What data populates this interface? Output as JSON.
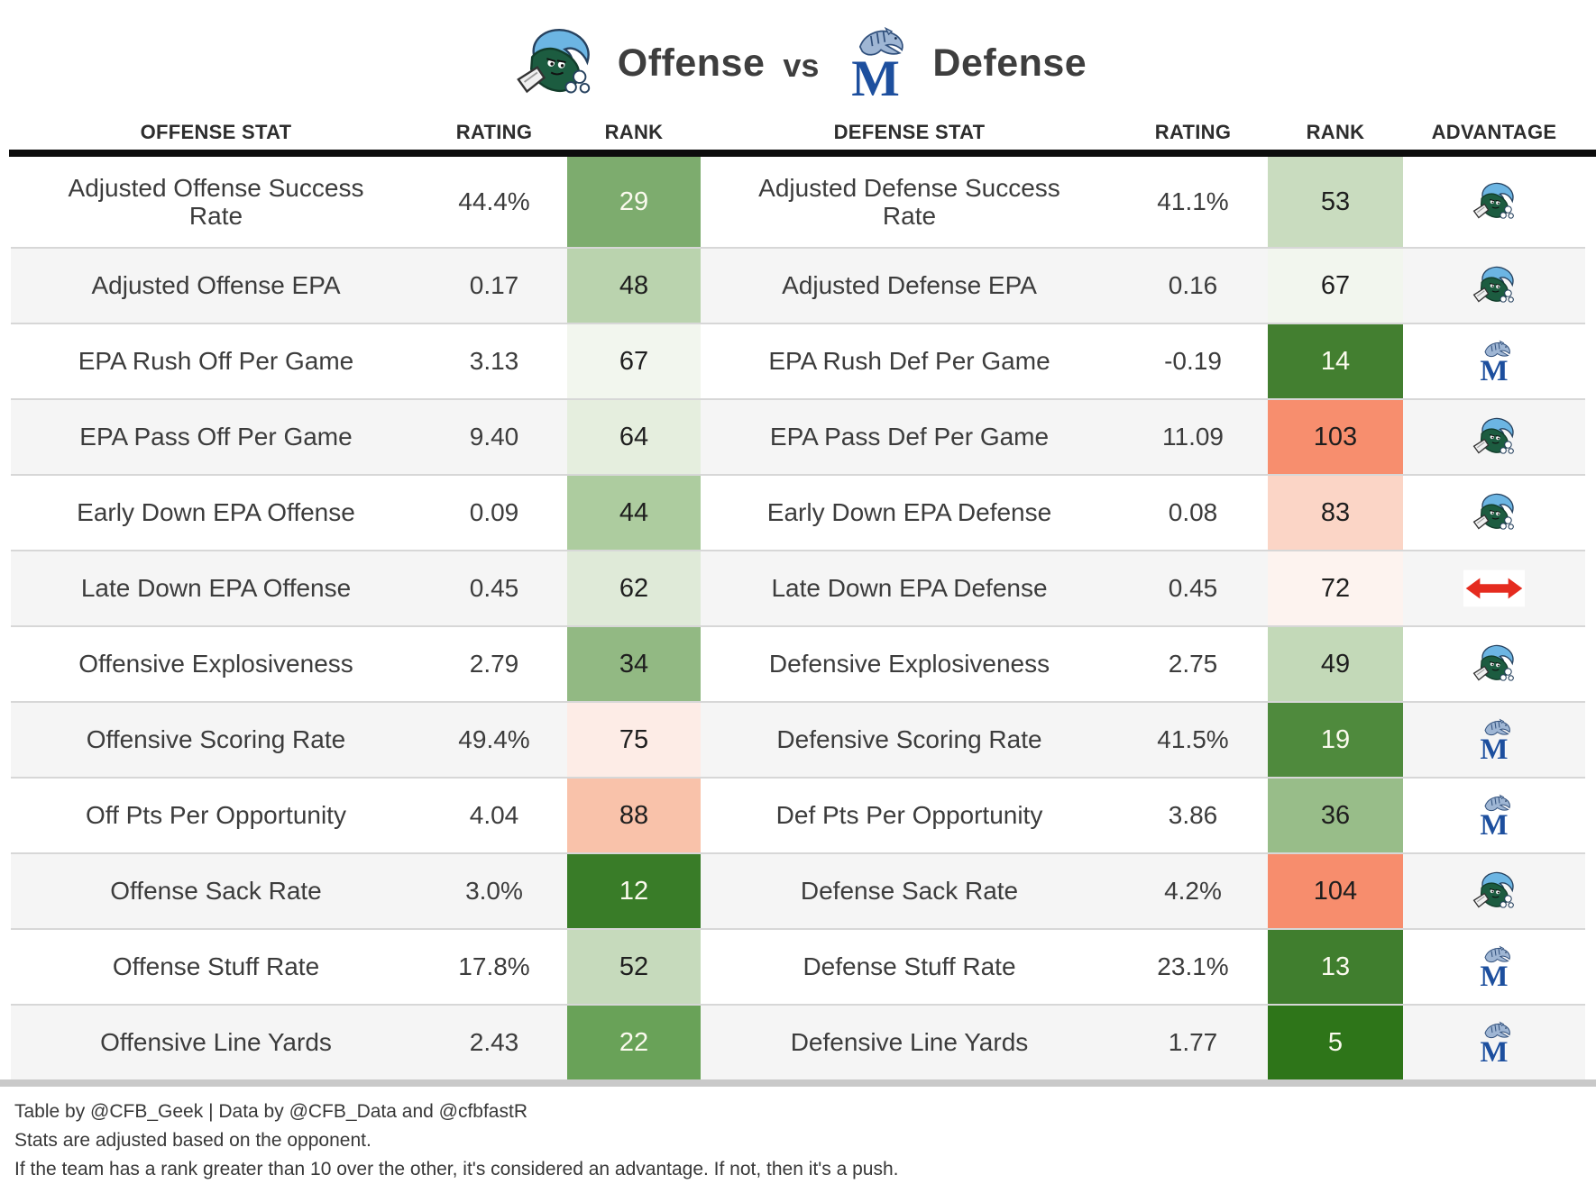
{
  "title": {
    "offense_label": "Offense",
    "vs_label": "vs",
    "defense_label": "Defense"
  },
  "icons": {
    "offense_logo": "tulane-green-wave-logo",
    "defense_logo": "memphis-tigers-logo",
    "push": "red-double-headed-arrow"
  },
  "columns": [
    "OFFENSE STAT",
    "RATING",
    "RANK",
    "DEFENSE STAT",
    "RATING",
    "RANK",
    "ADVANTAGE"
  ],
  "rows": [
    {
      "offense_stat": "Adjusted Offense Success Rate",
      "offense_rating": "44.4%",
      "offense_rank": "29",
      "offense_rank_bg": "#7dac6e",
      "offense_rank_text": "#fbfaee",
      "defense_stat": "Adjusted Defense Success Rate",
      "defense_rating": "41.1%",
      "defense_rank": "53",
      "defense_rank_bg": "#c9dcbf",
      "defense_rank_text": "#1e1e1e",
      "advantage": "tulane"
    },
    {
      "offense_stat": "Adjusted Offense EPA",
      "offense_rating": "0.17",
      "offense_rank": "48",
      "offense_rank_bg": "#bad3ae",
      "offense_rank_text": "#1e1e1e",
      "defense_stat": "Adjusted Defense EPA",
      "defense_rating": "0.16",
      "defense_rank": "67",
      "defense_rank_bg": "#f2f6ee",
      "defense_rank_text": "#1e1e1e",
      "advantage": "tulane"
    },
    {
      "offense_stat": "EPA Rush Off Per Game",
      "offense_rating": "3.13",
      "offense_rank": "67",
      "offense_rank_bg": "#f2f6ee",
      "offense_rank_text": "#1e1e1e",
      "defense_stat": "EPA Rush Def Per Game",
      "defense_rating": "-0.19",
      "defense_rank": "14",
      "defense_rank_bg": "#437f30",
      "defense_rank_text": "#fbfaee",
      "advantage": "memphis"
    },
    {
      "offense_stat": "EPA Pass Off Per Game",
      "offense_rating": "9.40",
      "offense_rank": "64",
      "offense_rank_bg": "#e5eede",
      "offense_rank_text": "#1e1e1e",
      "defense_stat": "EPA Pass Def Per Game",
      "defense_rating": "11.09",
      "defense_rank": "103",
      "defense_rank_bg": "#f78e6e",
      "defense_rank_text": "#1e1e1e",
      "advantage": "tulane"
    },
    {
      "offense_stat": "Early Down EPA Offense",
      "offense_rating": "0.09",
      "offense_rank": "44",
      "offense_rank_bg": "#adcc9f",
      "offense_rank_text": "#1e1e1e",
      "defense_stat": "Early Down EPA Defense",
      "defense_rating": "0.08",
      "defense_rank": "83",
      "defense_rank_bg": "#fbd5c6",
      "defense_rank_text": "#1e1e1e",
      "advantage": "tulane"
    },
    {
      "offense_stat": "Late Down EPA Offense",
      "offense_rating": "0.45",
      "offense_rank": "62",
      "offense_rank_bg": "#dfead8",
      "offense_rank_text": "#1e1e1e",
      "defense_stat": "Late Down EPA Defense",
      "defense_rating": "0.45",
      "defense_rank": "72",
      "defense_rank_bg": "#fdf3ef",
      "defense_rank_text": "#1e1e1e",
      "advantage": "push"
    },
    {
      "offense_stat": "Offensive Explosiveness",
      "offense_rating": "2.79",
      "offense_rank": "34",
      "offense_rank_bg": "#92b983",
      "offense_rank_text": "#1e1e1e",
      "defense_stat": "Defensive Explosiveness",
      "defense_rating": "2.75",
      "defense_rank": "49",
      "defense_rank_bg": "#c3d9b8",
      "defense_rank_text": "#1e1e1e",
      "advantage": "tulane"
    },
    {
      "offense_stat": "Offensive Scoring Rate",
      "offense_rating": "49.4%",
      "offense_rank": "75",
      "offense_rank_bg": "#fdece6",
      "offense_rank_text": "#1e1e1e",
      "defense_stat": "Defensive Scoring Rate",
      "defense_rating": "41.5%",
      "defense_rank": "19",
      "defense_rank_bg": "#4f8a3d",
      "defense_rank_text": "#fbfaee",
      "advantage": "memphis"
    },
    {
      "offense_stat": "Off Pts Per Opportunity",
      "offense_rating": "4.04",
      "offense_rank": "88",
      "offense_rank_bg": "#f9c2aa",
      "offense_rank_text": "#1e1e1e",
      "defense_stat": "Def Pts Per Opportunity",
      "defense_rating": "3.86",
      "defense_rank": "36",
      "defense_rank_bg": "#98bd89",
      "defense_rank_text": "#1e1e1e",
      "advantage": "memphis"
    },
    {
      "offense_stat": "Offense Sack Rate",
      "offense_rating": "3.0%",
      "offense_rank": "12",
      "offense_rank_bg": "#397c28",
      "offense_rank_text": "#fbfaee",
      "defense_stat": "Defense Sack Rate",
      "defense_rating": "4.2%",
      "defense_rank": "104",
      "defense_rank_bg": "#f78d6d",
      "defense_rank_text": "#1e1e1e",
      "advantage": "tulane"
    },
    {
      "offense_stat": "Offense Stuff Rate",
      "offense_rating": "17.8%",
      "offense_rank": "52",
      "offense_rank_bg": "#c6dabc",
      "offense_rank_text": "#1e1e1e",
      "defense_stat": "Defense Stuff Rate",
      "defense_rating": "23.1%",
      "defense_rank": "13",
      "defense_rank_bg": "#407e2e",
      "defense_rank_text": "#fbfaee",
      "advantage": "memphis"
    },
    {
      "offense_stat": "Offensive Line Yards",
      "offense_rating": "2.43",
      "offense_rank": "22",
      "offense_rank_bg": "#69a258",
      "offense_rank_text": "#fbfaee",
      "defense_stat": "Defensive Line Yards",
      "defense_rating": "1.77",
      "defense_rank": "5",
      "defense_rank_bg": "#2e7519",
      "defense_rank_text": "#fbfaee",
      "advantage": "memphis"
    }
  ],
  "footnotes": [
    "Table by @CFB_Geek | Data by @CFB_Data and @cfbfastR",
    "Stats are adjusted based on the opponent.",
    "If the team has a rank greater than 10 over the other, it's considered an advantage. If not, then it's a push."
  ],
  "colors": {
    "row_bg": "#ffffff",
    "row_alt_bg": "#f5f5f5",
    "header_bar": "#0d0d0d",
    "bottom_bar": "#c9c9c9",
    "separator": "#d7d7d7",
    "body_text": "#3c3c3c",
    "header_text": "#2d2d2d",
    "tulane_green": "#1c5c40",
    "tulane_blue": "#6cb5e3",
    "memphis_blue": "#1d4f9e",
    "push_red": "#e52b1f"
  },
  "chart_data": {
    "type": "table",
    "title": "Tulane Offense vs Memphis Defense",
    "columns": [
      "OFFENSE STAT",
      "RATING",
      "RANK",
      "DEFENSE STAT",
      "RATING",
      "RANK",
      "ADVANTAGE"
    ],
    "rows": [
      [
        "Adjusted Offense Success Rate",
        "44.4%",
        29,
        "Adjusted Defense Success Rate",
        "41.1%",
        53,
        "Tulane"
      ],
      [
        "Adjusted Offense EPA",
        0.17,
        48,
        "Adjusted Defense EPA",
        0.16,
        67,
        "Tulane"
      ],
      [
        "EPA Rush Off Per Game",
        3.13,
        67,
        "EPA Rush Def Per Game",
        -0.19,
        14,
        "Memphis"
      ],
      [
        "EPA Pass Off Per Game",
        9.4,
        64,
        "EPA Pass Def Per Game",
        11.09,
        103,
        "Tulane"
      ],
      [
        "Early Down EPA Offense",
        0.09,
        44,
        "Early Down EPA Defense",
        0.08,
        83,
        "Tulane"
      ],
      [
        "Late Down EPA Offense",
        0.45,
        62,
        "Late Down EPA Defense",
        0.45,
        72,
        "Push"
      ],
      [
        "Offensive Explosiveness",
        2.79,
        34,
        "Defensive Explosiveness",
        2.75,
        49,
        "Tulane"
      ],
      [
        "Offensive Scoring Rate",
        "49.4%",
        75,
        "Defensive Scoring Rate",
        "41.5%",
        19,
        "Memphis"
      ],
      [
        "Off Pts Per Opportunity",
        4.04,
        88,
        "Def Pts Per Opportunity",
        3.86,
        36,
        "Memphis"
      ],
      [
        "Offense Sack Rate",
        "3.0%",
        12,
        "Defense Sack Rate",
        "4.2%",
        104,
        "Tulane"
      ],
      [
        "Offense Stuff Rate",
        "17.8%",
        52,
        "Defense Stuff Rate",
        "23.1%",
        13,
        "Memphis"
      ],
      [
        "Offensive Line Yards",
        2.43,
        22,
        "Defensive Line Yards",
        1.77,
        5,
        "Memphis"
      ]
    ],
    "rank_color_scale": "diverging green (rank 1) to white (~rank 68) to salmon red (rank 130)"
  }
}
